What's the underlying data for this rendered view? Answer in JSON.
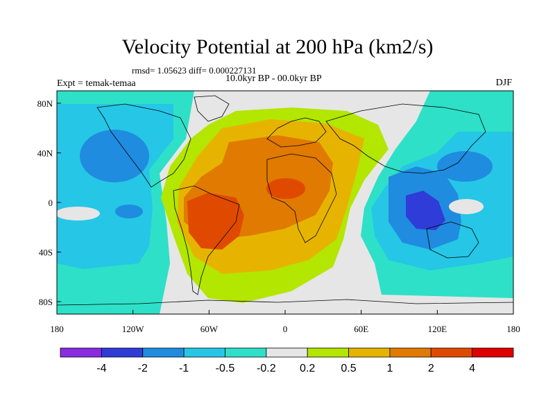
{
  "header": {
    "title": "Velocity Potential at 200 hPa (km2/s)",
    "stats": "rmsd= 1.05623 diff= 0.000227131",
    "experiment": "Expt = temak-temaa",
    "period": "10.0kyr BP - 00.0kyr BP",
    "season": "DJF"
  },
  "map": {
    "lon_ticks": [
      "180",
      "120W",
      "60W",
      "0",
      "60E",
      "120E",
      "180"
    ],
    "lon_values": [
      -180,
      -120,
      -60,
      0,
      60,
      120,
      180
    ],
    "lat_ticks": [
      "80N",
      "40N",
      "0",
      "40S",
      "80S"
    ],
    "lat_values": [
      80,
      40,
      0,
      -40,
      -80
    ],
    "lon_range": [
      -180,
      180
    ],
    "lat_range": [
      -90,
      90
    ]
  },
  "colorbar": {
    "colors": [
      "#8a2be2",
      "#2f3cd8",
      "#1f8ce0",
      "#26c6e6",
      "#2ee0c8",
      "#e6e6e6",
      "#b3e600",
      "#e6b400",
      "#e07a00",
      "#e04a00",
      "#e00000"
    ],
    "labels": [
      "-4",
      "-2",
      "-1",
      "-0.5",
      "-0.2",
      "0.2",
      "0.5",
      "1",
      "2",
      "4"
    ]
  },
  "palette": {
    "coast": "#000000",
    "frame": "#000000"
  }
}
